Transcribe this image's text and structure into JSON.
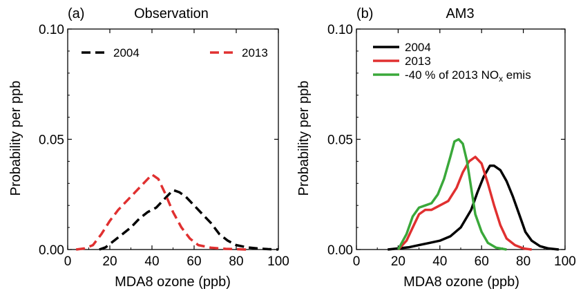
{
  "chart_data": [
    {
      "type": "line",
      "panel_label": "(a)",
      "title": "Observation",
      "xlabel": "MDA8 ozone (ppb)",
      "ylabel": "Probability per ppb",
      "xlim": [
        0,
        100
      ],
      "ylim": [
        0,
        0.1
      ],
      "xticks": [
        "0",
        "20",
        "40",
        "60",
        "80",
        "100"
      ],
      "yticks": [
        "0.00",
        "0.05",
        "0.10"
      ],
      "legend_placement": "top",
      "series": [
        {
          "name": "2004",
          "color": "#000000",
          "style": "dashed",
          "points": [
            [
              15,
              0
            ],
            [
              18,
              0.001
            ],
            [
              22,
              0.004
            ],
            [
              26,
              0.007
            ],
            [
              30,
              0.01
            ],
            [
              34,
              0.014
            ],
            [
              38,
              0.017
            ],
            [
              42,
              0.019
            ],
            [
              45,
              0.022
            ],
            [
              48,
              0.025
            ],
            [
              50,
              0.027
            ],
            [
              53,
              0.026
            ],
            [
              56,
              0.024
            ],
            [
              60,
              0.02
            ],
            [
              64,
              0.016
            ],
            [
              68,
              0.012
            ],
            [
              72,
              0.007
            ],
            [
              76,
              0.004
            ],
            [
              80,
              0.002
            ],
            [
              85,
              0.001
            ],
            [
              90,
              0.0005
            ],
            [
              95,
              0.0002
            ],
            [
              100,
              0
            ]
          ]
        },
        {
          "name": "2013",
          "color": "#e03030",
          "style": "dashed",
          "points": [
            [
              4,
              0
            ],
            [
              8,
              0.0005
            ],
            [
              12,
              0.002
            ],
            [
              16,
              0.007
            ],
            [
              20,
              0.013
            ],
            [
              24,
              0.018
            ],
            [
              28,
              0.022
            ],
            [
              32,
              0.026
            ],
            [
              36,
              0.03
            ],
            [
              40,
              0.034
            ],
            [
              43,
              0.032
            ],
            [
              46,
              0.026
            ],
            [
              50,
              0.017
            ],
            [
              54,
              0.01
            ],
            [
              58,
              0.005
            ],
            [
              62,
              0.002
            ],
            [
              68,
              0.0008
            ],
            [
              75,
              0.0003
            ],
            [
              85,
              0
            ]
          ]
        }
      ]
    },
    {
      "type": "line",
      "panel_label": "(b)",
      "title": "AM3",
      "xlabel": "MDA8 ozone (ppb)",
      "ylabel": "Probability per ppb",
      "xlim": [
        0,
        100
      ],
      "ylim": [
        0,
        0.1
      ],
      "xticks": [
        "0",
        "20",
        "40",
        "60",
        "80",
        "100"
      ],
      "yticks": [
        "0.00",
        "0.05",
        "0.10"
      ],
      "legend_placement": "top-left",
      "series": [
        {
          "name": "2004",
          "color": "#000000",
          "style": "solid",
          "points": [
            [
              15,
              0
            ],
            [
              20,
              0.0005
            ],
            [
              25,
              0.001
            ],
            [
              30,
              0.002
            ],
            [
              35,
              0.003
            ],
            [
              40,
              0.004
            ],
            [
              45,
              0.006
            ],
            [
              50,
              0.01
            ],
            [
              55,
              0.018
            ],
            [
              58,
              0.026
            ],
            [
              61,
              0.033
            ],
            [
              64,
              0.038
            ],
            [
              66,
              0.038
            ],
            [
              69,
              0.036
            ],
            [
              72,
              0.031
            ],
            [
              75,
              0.024
            ],
            [
              78,
              0.016
            ],
            [
              81,
              0.008
            ],
            [
              84,
              0.004
            ],
            [
              88,
              0.0015
            ],
            [
              92,
              0.0005
            ],
            [
              97,
              0
            ]
          ]
        },
        {
          "name": "2013",
          "color": "#e03030",
          "style": "solid",
          "points": [
            [
              20,
              0
            ],
            [
              24,
              0.004
            ],
            [
              27,
              0.01
            ],
            [
              30,
              0.016
            ],
            [
              33,
              0.018
            ],
            [
              36,
              0.018
            ],
            [
              40,
              0.02
            ],
            [
              44,
              0.022
            ],
            [
              48,
              0.028
            ],
            [
              51,
              0.035
            ],
            [
              54,
              0.04
            ],
            [
              57,
              0.042
            ],
            [
              60,
              0.039
            ],
            [
              63,
              0.03
            ],
            [
              66,
              0.02
            ],
            [
              69,
              0.011
            ],
            [
              72,
              0.005
            ],
            [
              76,
              0.002
            ],
            [
              80,
              0.0005
            ],
            [
              84,
              0
            ]
          ]
        },
        {
          "name": "-40 % of 2013 NO",
          "name_sub": "x",
          "name_suffix": " emis",
          "color": "#3aa83a",
          "style": "solid",
          "points": [
            [
              20,
              0
            ],
            [
              24,
              0.007
            ],
            [
              27,
              0.015
            ],
            [
              30,
              0.019
            ],
            [
              33,
              0.02
            ],
            [
              36,
              0.021
            ],
            [
              39,
              0.025
            ],
            [
              42,
              0.032
            ],
            [
              45,
              0.042
            ],
            [
              47,
              0.049
            ],
            [
              49,
              0.05
            ],
            [
              51,
              0.048
            ],
            [
              53,
              0.04
            ],
            [
              55,
              0.028
            ],
            [
              57,
              0.016
            ],
            [
              60,
              0.008
            ],
            [
              63,
              0.003
            ],
            [
              67,
              0.0008
            ],
            [
              72,
              0
            ]
          ]
        }
      ]
    }
  ]
}
